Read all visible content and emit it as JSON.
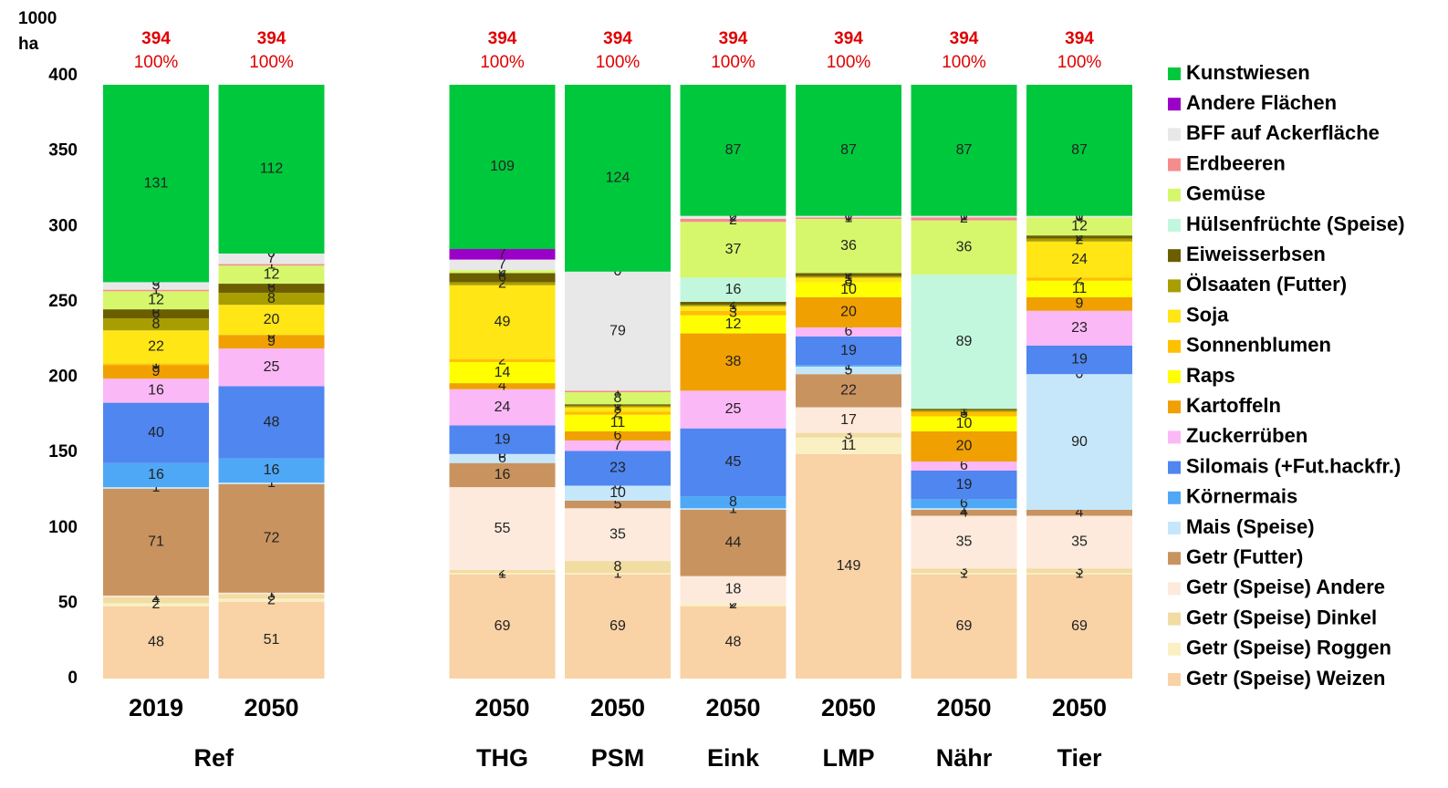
{
  "chart_data": {
    "type": "stacked_bar",
    "y_unit": [
      "1000",
      "ha"
    ],
    "groups": [
      {
        "name": "Ref",
        "categories": [
          "2019",
          "2050"
        ]
      },
      {
        "name": "THG",
        "categories": [
          "2050"
        ]
      },
      {
        "name": "PSM",
        "categories": [
          "2050"
        ]
      },
      {
        "name": "Eink",
        "categories": [
          "2050"
        ]
      },
      {
        "name": "LMP",
        "categories": [
          "2050"
        ]
      },
      {
        "name": "Nähr",
        "categories": [
          "2050"
        ]
      },
      {
        "name": "Tier",
        "categories": [
          "2050"
        ]
      }
    ],
    "totals": {
      "values": [
        394,
        394,
        394,
        394,
        394,
        394,
        394,
        394
      ],
      "color": "#e00000"
    },
    "shares": {
      "values": [
        100,
        100,
        100,
        100,
        100,
        100,
        100,
        100
      ],
      "value_labels": [
        "100%",
        "100%",
        "100%",
        "100%",
        "100%",
        "100%",
        "100%",
        "100%"
      ],
      "color": "#e00000"
    },
    "ylim": [
      0,
      400
    ],
    "yticks": [
      0,
      50,
      100,
      150,
      200,
      250,
      300,
      350,
      400
    ],
    "grid": false,
    "legend": "right",
    "series": [
      {
        "name": "Getr (Speise) Weizen",
        "color": "#f9d2a6",
        "values": [
          48,
          51,
          69,
          69,
          48,
          149,
          69,
          69
        ]
      },
      {
        "name": "Getr (Speise) Roggen",
        "color": "#faf0c4",
        "values": [
          2,
          2,
          1,
          1,
          2,
          11,
          1,
          1
        ]
      },
      {
        "name": "Getr (Speise) Dinkel",
        "color": "#f1dca2",
        "values": [
          4,
          3,
          2,
          8,
          0,
          3,
          3,
          3
        ]
      },
      {
        "name": "Getr (Speise) Andere",
        "color": "#fdeadc",
        "values": [
          1,
          1,
          55,
          35,
          18,
          17,
          35,
          35
        ]
      },
      {
        "name": "Getr (Futter)",
        "color": "#c9935f",
        "values": [
          71,
          72,
          16,
          5,
          44,
          22,
          4,
          4
        ]
      },
      {
        "name": "Mais (Speise)",
        "color": "#c6e7fa",
        "values": [
          1,
          1,
          6,
          10,
          1,
          5,
          1,
          90
        ]
      },
      {
        "name": "Körnermais",
        "color": "#4fa8f6",
        "values": [
          16,
          16,
          0,
          0,
          8,
          1,
          6,
          0
        ]
      },
      {
        "name": "Silomais (+Fut.hackfr.)",
        "color": "#4f86f0",
        "values": [
          40,
          48,
          19,
          23,
          45,
          19,
          19,
          19
        ]
      },
      {
        "name": "Zuckerrüben",
        "color": "#fbb8f6",
        "values": [
          16,
          25,
          24,
          7,
          25,
          6,
          6,
          23
        ]
      },
      {
        "name": "Kartoffeln",
        "color": "#f0a000",
        "values": [
          9,
          9,
          4,
          6,
          38,
          20,
          20,
          9
        ]
      },
      {
        "name": "Raps",
        "color": "#ffff00",
        "values": [
          0,
          0,
          14,
          11,
          12,
          10,
          10,
          11
        ]
      },
      {
        "name": "Sonnenblumen",
        "color": "#ffc000",
        "values": [
          1,
          0,
          2,
          2,
          3,
          0,
          3,
          2
        ]
      },
      {
        "name": "Soja",
        "color": "#ffe614",
        "values": [
          22,
          20,
          49,
          3,
          3,
          3,
          0,
          24
        ]
      },
      {
        "name": "Ölsaaten (Futter)",
        "color": "#a89e00",
        "values": [
          8,
          8,
          2,
          1,
          1,
          1,
          1,
          2
        ]
      },
      {
        "name": "Eiweisserbsen",
        "color": "#6b5e00",
        "values": [
          6,
          6,
          6,
          1,
          2,
          2,
          1,
          2
        ]
      },
      {
        "name": "Hülsenfrüchte (Speise)",
        "color": "#c2f7de",
        "values": [
          0,
          0,
          0,
          0,
          16,
          0,
          89,
          0
        ]
      },
      {
        "name": "Gemüse",
        "color": "#d6f76c",
        "values": [
          12,
          12,
          2,
          8,
          37,
          36,
          36,
          12
        ]
      },
      {
        "name": "Erdbeeren",
        "color": "#f58c8c",
        "values": [
          1,
          1,
          0,
          1,
          2,
          1,
          2,
          0
        ]
      },
      {
        "name": "BFF auf Ackerfläche",
        "color": "#e8e8e8",
        "values": [
          5,
          7,
          7,
          79,
          2,
          1,
          1,
          1
        ]
      },
      {
        "name": "Andere Flächen",
        "color": "#9b00c8",
        "values": [
          0,
          0,
          7,
          0,
          0,
          0,
          0,
          0
        ]
      },
      {
        "name": "Kunstwiesen",
        "color": "#00c83c",
        "values": [
          131,
          112,
          109,
          124,
          87,
          87,
          87,
          87
        ]
      }
    ]
  }
}
